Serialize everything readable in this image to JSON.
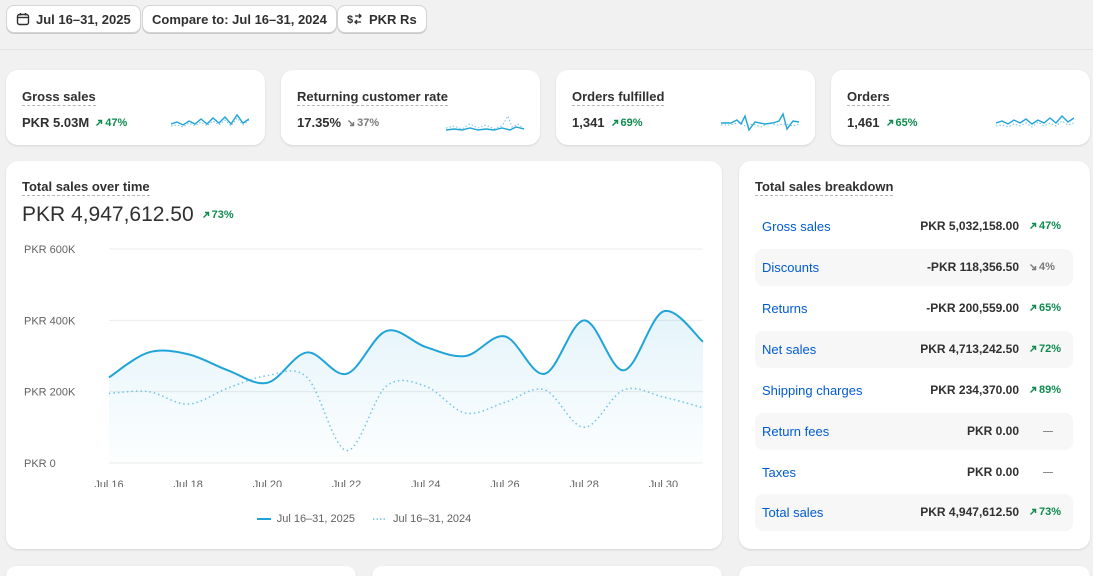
{
  "toolbar": {
    "date_range": "Jul 16–31, 2025",
    "compare": "Compare to: Jul 16–31, 2024",
    "currency": "PKR Rs"
  },
  "kpis": [
    {
      "title": "Gross sales",
      "value": "PKR 5.03M",
      "change": "47%",
      "direction": "up"
    },
    {
      "title": "Returning customer rate",
      "value": "17.35%",
      "change": "37%",
      "direction": "down"
    },
    {
      "title": "Orders fulfilled",
      "value": "1,341",
      "change": "69%",
      "direction": "up"
    },
    {
      "title": "Orders",
      "value": "1,461",
      "change": "65%",
      "direction": "up"
    }
  ],
  "sales_chart": {
    "title": "Total sales over time",
    "total": "PKR 4,947,612.50",
    "change": "73%",
    "direction": "up"
  },
  "chart_data": {
    "type": "line",
    "title": "",
    "xlabel": "",
    "ylabel": "",
    "x": [
      "Jul 16",
      "Jul 17",
      "Jul 18",
      "Jul 19",
      "Jul 20",
      "Jul 21",
      "Jul 22",
      "Jul 23",
      "Jul 24",
      "Jul 25",
      "Jul 26",
      "Jul 27",
      "Jul 28",
      "Jul 29",
      "Jul 30",
      "Jul 31"
    ],
    "x_tick_labels": [
      "Jul 16",
      "Jul 18",
      "Jul 20",
      "Jul 22",
      "Jul 24",
      "Jul 26",
      "Jul 28",
      "Jul 30"
    ],
    "y_tick_labels": [
      "PKR 0",
      "PKR 200K",
      "PKR 400K",
      "PKR 600K"
    ],
    "y_ticks": [
      0,
      200000,
      400000,
      600000
    ],
    "ylim": [
      0,
      600000
    ],
    "grid": true,
    "legend_position": "bottom",
    "series": [
      {
        "name": "Jul 16–31, 2025",
        "color": "#20a4d8",
        "style": "solid",
        "values": [
          240000,
          310000,
          305000,
          260000,
          225000,
          310000,
          250000,
          370000,
          325000,
          300000,
          355000,
          250000,
          400000,
          260000,
          425000,
          340000
        ]
      },
      {
        "name": "Jul 16–31, 2024",
        "color": "#6ec4e4",
        "style": "dotted",
        "values": [
          195000,
          200000,
          165000,
          210000,
          245000,
          240000,
          35000,
          215000,
          215000,
          140000,
          170000,
          205000,
          100000,
          205000,
          185000,
          155000
        ]
      }
    ]
  },
  "breakdown": {
    "title": "Total sales breakdown",
    "rows": [
      {
        "label": "Gross sales",
        "value": "PKR 5,032,158.00",
        "change": "47%",
        "direction": "up"
      },
      {
        "label": "Discounts",
        "value": "-PKR 118,356.50",
        "change": "4%",
        "direction": "down"
      },
      {
        "label": "Returns",
        "value": "-PKR 200,559.00",
        "change": "65%",
        "direction": "up"
      },
      {
        "label": "Net sales",
        "value": "PKR 4,713,242.50",
        "change": "72%",
        "direction": "up"
      },
      {
        "label": "Shipping charges",
        "value": "PKR 234,370.00",
        "change": "89%",
        "direction": "up"
      },
      {
        "label": "Return fees",
        "value": "PKR 0.00",
        "change": "",
        "direction": "none"
      },
      {
        "label": "Taxes",
        "value": "PKR 0.00",
        "change": "",
        "direction": "none"
      },
      {
        "label": "Total sales",
        "value": "PKR 4,947,612.50",
        "change": "73%",
        "direction": "up"
      }
    ]
  },
  "colors": {
    "accent": "#20a4d8",
    "positive": "#0e8a4f",
    "link": "#005bd3"
  },
  "icons": [
    "calendar-icon",
    "currency-swap-icon",
    "arrow-up-right-icon",
    "arrow-down-right-icon"
  ]
}
